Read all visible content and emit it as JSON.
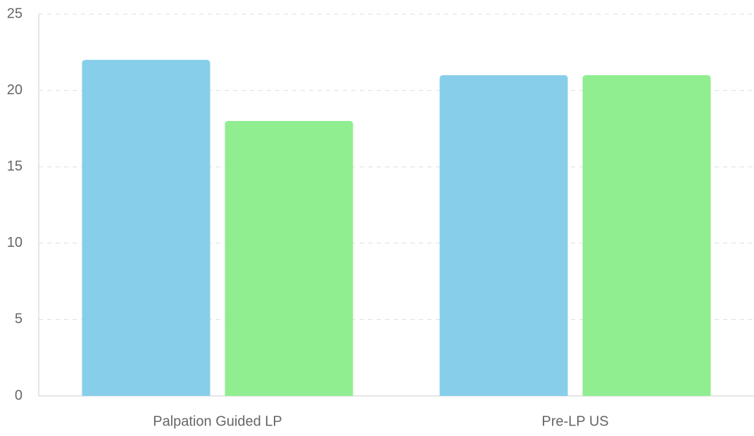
{
  "chart_data": {
    "type": "bar",
    "categories": [
      "Palpation Guided LP",
      "Pre-LP US"
    ],
    "series": [
      {
        "color": "#87ceeb",
        "values": [
          22,
          21
        ]
      },
      {
        "color": "#90ee90",
        "values": [
          18,
          21
        ]
      }
    ],
    "ylim": [
      0,
      25
    ],
    "yticks": [
      0,
      5,
      10,
      15,
      20,
      25
    ],
    "grid": true
  }
}
